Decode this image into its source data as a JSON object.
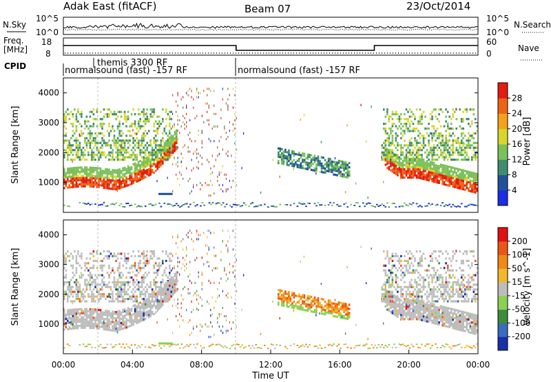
{
  "header": {
    "station": "Adak East (fitACF)",
    "beam": "Beam 07",
    "date": "23/Oct/2014"
  },
  "noise_panel": {
    "left_label": "N.Sky",
    "right_label": "N.Search",
    "left_ticks": [
      "10^5",
      "10^0"
    ],
    "right_ticks": [
      "10^5",
      "10^0"
    ]
  },
  "freq_panel": {
    "left_label_1": "Freq.",
    "left_label_2": "[MHz]",
    "right_label": "Nave",
    "left_ticks": [
      "18",
      "8"
    ],
    "right_ticks": [
      "60",
      "0"
    ]
  },
  "cpid_panel": {
    "label": "CPID",
    "programs": [
      {
        "text": "normalsound (fast) -157 RF",
        "start_hour": 0,
        "end_hour": 10
      },
      {
        "text": "themis 3300 RF",
        "start_hour": 2,
        "end_hour": 2
      },
      {
        "text": "normalsound (fast) -157 RF",
        "start_hour": 10,
        "end_hour": 24
      }
    ],
    "freq_steps": [
      {
        "start_hour": 0,
        "end_hour": 10,
        "level": "high"
      },
      {
        "start_hour": 10,
        "end_hour": 18,
        "level": "low"
      },
      {
        "start_hour": 18,
        "end_hour": 24,
        "level": "high"
      }
    ]
  },
  "chart_data": [
    {
      "type": "heatmap",
      "name": "power",
      "xlabel": "",
      "ylabel": "Slant Range [km]",
      "xlim": [
        0,
        24
      ],
      "ylim": [
        0,
        4500
      ],
      "yticks": [
        1000,
        2000,
        3000,
        4000
      ],
      "colorbar": {
        "label": "Power [dB]",
        "ticks": [
          "4",
          "8",
          "12",
          "16",
          "20",
          "24",
          "28"
        ],
        "colors": [
          "#1a2ee8",
          "#23509c",
          "#3f8c6e",
          "#7cc05a",
          "#d8d62c",
          "#f4a21c",
          "#ee6414",
          "#e21c10"
        ]
      }
    },
    {
      "type": "heatmap",
      "name": "velocity",
      "xlabel": "Time UT",
      "ylabel": "Slant Range [km]",
      "xlim": [
        0,
        24
      ],
      "ylim": [
        0,
        4500
      ],
      "yticks": [
        1000,
        2000,
        3000,
        4000
      ],
      "xticks": [
        "00:00",
        "04:00",
        "08:00",
        "12:00",
        "16:00",
        "20:00",
        "00:00"
      ],
      "colorbar": {
        "label": "Velocity [m s^-1]",
        "ticks": [
          "200",
          "100",
          "50",
          "15",
          "-15",
          "-50",
          "-100",
          "-200"
        ],
        "colors": [
          "#1a2ea8",
          "#3c6abe",
          "#3d8c3a",
          "#8cd050",
          "#bdbdbd",
          "#f2b82c",
          "#f08a14",
          "#ec5614",
          "#e21010"
        ]
      }
    }
  ]
}
